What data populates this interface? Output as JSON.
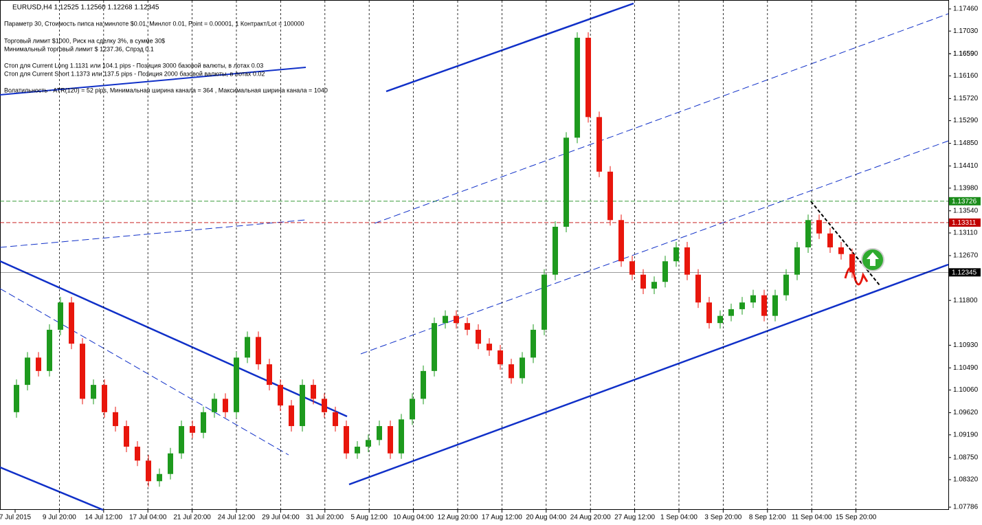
{
  "chart_data": {
    "type": "candlestick",
    "title": "EURUSD,H4  1.12525 1.12560 1.12268 1.12345",
    "info_lines": [
      "Параметр 30,  Стоимость пипса на минлоте  $0.01,   Минлот 0.01,  Point = 0.00001,  1 Контракт/Lot = 100000",
      "Торговый лимит  $1000, Риск на сделку 3%,  в сумме 30$",
      "Минимальный торговый лимит  $ 1237.36,   Спрэд  0.1",
      "Стоп для Current Long  1.1131  или  104.1 pips - Позиция 3000 базовой валюты,  в лотах 0.03",
      "Стоп для Current Short 1.1373  или  137.5 pips - Позиция 2000 базовой валюты,  в лотах 0.02",
      "Волатильность - ATR(120) = 52 pips,  Минимальная ширина канала = 364  , Максимальная ширина канала = 1040"
    ],
    "x_labels": [
      "7 Jul 2015",
      "9 Jul 20:00",
      "14 Jul 12:00",
      "17 Jul 04:00",
      "21 Jul 20:00",
      "24 Jul 12:00",
      "29 Jul 04:00",
      "31 Jul 20:00",
      "5 Aug 12:00",
      "10 Aug 04:00",
      "12 Aug 20:00",
      "17 Aug 12:00",
      "20 Aug 04:00",
      "24 Aug 20:00",
      "27 Aug 12:00",
      "1 Sep 04:00",
      "3 Sep 20:00",
      "8 Sep 12:00",
      "11 Sep 04:00",
      "15 Sep 20:00"
    ],
    "closes": [
      1.0963,
      1.1016,
      1.1069,
      1.1043,
      1.1123,
      1.1176,
      1.1096,
      1.0989,
      1.1016,
      1.0963,
      1.0936,
      1.0896,
      1.0869,
      1.0829,
      1.0843,
      1.0883,
      1.0936,
      1.0923,
      1.0963,
      1.0989,
      1.0963,
      1.1069,
      1.1109,
      1.1056,
      1.1016,
      1.0976,
      1.0936,
      1.1016,
      1.0989,
      1.0963,
      1.0936,
      1.0883,
      1.0896,
      1.0909,
      1.0936,
      1.0883,
      1.0949,
      1.0989,
      1.1043,
      1.1136,
      1.115,
      1.1136,
      1.1123,
      1.1096,
      1.1083,
      1.1056,
      1.1029,
      1.1069,
      1.1123,
      1.123,
      1.1323,
      1.1496,
      1.169,
      1.1536,
      1.143,
      1.1336,
      1.1256,
      1.123,
      1.1203,
      1.1216,
      1.1256,
      1.1283,
      1.123,
      1.1176,
      1.1136,
      1.115,
      1.1163,
      1.1176,
      1.119,
      1.115,
      1.119,
      1.123,
      1.1283,
      1.1336,
      1.131,
      1.1283,
      1.127,
      1.12345
    ],
    "up_color": "#1e9a1e",
    "down_color": "#e8160c",
    "ylim": [
      1.07733,
      1.17633
    ],
    "yticks": [
      {
        "value": 1.1746,
        "label": "1.17460"
      },
      {
        "value": 1.1703,
        "label": "1.17030"
      },
      1.1659,
      {
        "value": 1.1659,
        "label": "1.16590"
      },
      {
        "value": 1.1616,
        "label": "1.16160"
      },
      {
        "value": 1.1572,
        "label": "1.15720"
      },
      {
        "value": 1.1529,
        "label": "1.15290"
      },
      {
        "value": 1.1485,
        "label": "1.14850"
      },
      {
        "value": 1.1441,
        "label": "1.14410"
      },
      {
        "value": 1.1398,
        "label": "1.13980"
      },
      {
        "value": 1.1354,
        "label": "1.13540"
      },
      {
        "value": 1.1311,
        "label": "1.13110"
      },
      {
        "value": 1.1267,
        "label": "1.12670"
      },
      {
        "value": 1.118,
        "label": "1.11800"
      },
      {
        "value": 1.1093,
        "label": "1.10930"
      },
      {
        "value": 1.1049,
        "label": "1.10490"
      },
      {
        "value": 1.1006,
        "label": "1.10060"
      },
      {
        "value": 1.0962,
        "label": "1.09620"
      },
      {
        "value": 1.0919,
        "label": "1.09190"
      },
      {
        "value": 1.0875,
        "label": "1.08750"
      },
      {
        "value": 1.0832,
        "label": "1.08320"
      },
      1.07786
    ],
    "price_lines": [
      {
        "price": 1.13726,
        "color": "#1a8c1a"
      },
      {
        "price": 1.12345,
        "color": "#000000"
      },
      {
        "price": 1.13311,
        "color": "#c00000"
      }
    ],
    "grid": true
  }
}
